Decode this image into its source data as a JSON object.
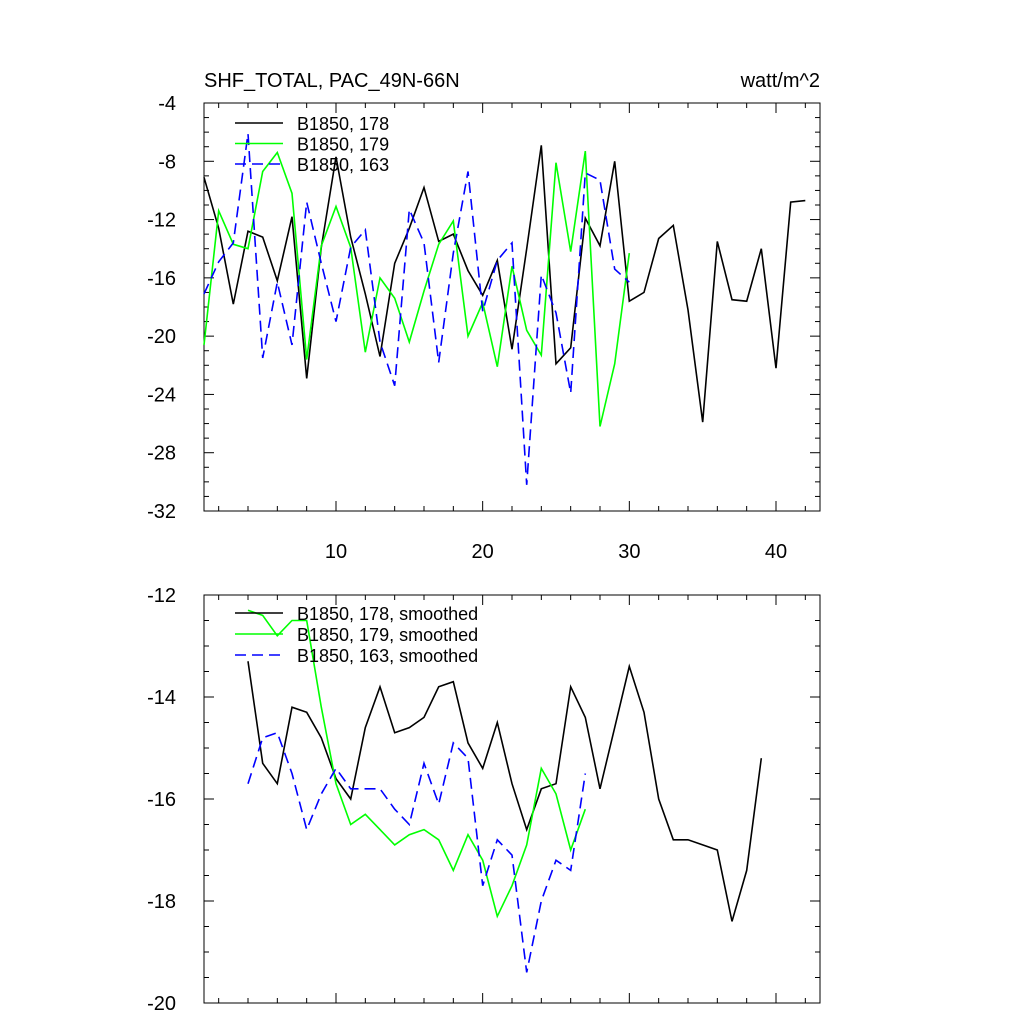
{
  "chart_data": [
    {
      "type": "line",
      "title_left": "SHF_TOTAL, PAC_49N-66N",
      "title_right": "watt/m^2",
      "xlim": [
        1,
        43
      ],
      "ylim": [
        -32,
        -4
      ],
      "xticks": [
        10,
        20,
        30,
        40
      ],
      "xtick_labels": [
        "10",
        "20",
        "30",
        "40"
      ],
      "yticks": [
        -4,
        -8,
        -12,
        -16,
        -20,
        -24,
        -28,
        -32
      ],
      "ytick_labels": [
        "-4",
        "-8",
        "-12",
        "-16",
        "-20",
        "-24",
        "-28",
        "-32"
      ],
      "series": [
        {
          "name": "B1850, 178",
          "color": "#000000",
          "dash": "solid",
          "x": [
            1,
            2,
            3,
            4,
            5,
            6,
            7,
            8,
            9,
            10,
            11,
            12,
            13,
            14,
            15,
            16,
            17,
            18,
            19,
            20,
            21,
            22,
            23,
            24,
            25,
            26,
            27,
            28,
            29,
            30,
            31,
            32,
            33,
            34,
            35,
            36,
            37,
            38,
            39,
            40,
            41,
            42
          ],
          "y": [
            -9.1,
            -12.6,
            -17.8,
            -12.8,
            -13.2,
            -16.2,
            -11.8,
            -22.9,
            -13.9,
            -7.7,
            -13.2,
            -17.1,
            -21.4,
            -15.0,
            -12.6,
            -9.8,
            -13.5,
            -13.0,
            -15.5,
            -17.2,
            -14.8,
            -20.9,
            -14.0,
            -6.9,
            -21.9,
            -20.8,
            -11.9,
            -13.8,
            -8.0,
            -17.6,
            -17.0,
            -13.3,
            -12.4,
            -18.2,
            -25.9,
            -13.5,
            -17.5,
            -17.6,
            -14.0,
            -22.2,
            -10.8,
            -10.7
          ]
        },
        {
          "name": "B1850, 179",
          "color": "#00ff00",
          "dash": "solid",
          "x": [
            1,
            2,
            3,
            4,
            5,
            6,
            7,
            8,
            9,
            10,
            11,
            12,
            13,
            14,
            15,
            16,
            17,
            18,
            19,
            20,
            21,
            22,
            23,
            24,
            25,
            26,
            27,
            28,
            29,
            30
          ],
          "y": [
            -20.6,
            -11.4,
            -13.7,
            -14.0,
            -8.7,
            -7.4,
            -10.2,
            -21.6,
            -13.8,
            -11.1,
            -13.9,
            -21.1,
            -16.0,
            -17.4,
            -20.4,
            -16.9,
            -13.7,
            -12.1,
            -20.0,
            -17.7,
            -22.1,
            -15.2,
            -19.6,
            -21.3,
            -8.1,
            -14.2,
            -7.3,
            -26.2,
            -21.9,
            -14.3
          ]
        },
        {
          "name": "B1850, 163",
          "color": "#0000ff",
          "dash": "dashed",
          "x": [
            1,
            2,
            3,
            4,
            5,
            6,
            7,
            8,
            9,
            10,
            11,
            12,
            13,
            14,
            15,
            16,
            17,
            18,
            19,
            20,
            21,
            22,
            23,
            24,
            25,
            26,
            27,
            28,
            29,
            30
          ],
          "y": [
            -17.1,
            -14.9,
            -13.6,
            -6.1,
            -21.5,
            -16.3,
            -20.6,
            -10.8,
            -15.0,
            -19.0,
            -13.9,
            -12.7,
            -20.4,
            -23.4,
            -11.3,
            -13.6,
            -21.8,
            -14.3,
            -8.7,
            -18.3,
            -14.8,
            -13.6,
            -30.2,
            -15.8,
            -18.4,
            -23.9,
            -8.8,
            -9.3,
            -15.4,
            -16.3
          ]
        }
      ]
    },
    {
      "type": "line",
      "xlim": [
        1,
        43
      ],
      "ylim": [
        -20,
        -12
      ],
      "xticks": [
        10,
        20,
        30,
        40
      ],
      "yticks": [
        -12,
        -14,
        -16,
        -18,
        -20
      ],
      "ytick_labels": [
        "-12",
        "-14",
        "-16",
        "-18",
        "-20"
      ],
      "series": [
        {
          "name": "B1850, 178, smoothed",
          "color": "#000000",
          "dash": "solid",
          "x": [
            4,
            5,
            6,
            7,
            8,
            9,
            10,
            11,
            12,
            13,
            14,
            15,
            16,
            17,
            18,
            19,
            20,
            21,
            22,
            23,
            24,
            25,
            26,
            27,
            28,
            29,
            30,
            31,
            32,
            33,
            34,
            35,
            36,
            37,
            38,
            39
          ],
          "y": [
            -13.3,
            -15.3,
            -15.7,
            -14.2,
            -14.3,
            -14.8,
            -15.6,
            -16.0,
            -14.6,
            -13.8,
            -14.7,
            -14.6,
            -14.4,
            -13.8,
            -13.7,
            -14.9,
            -15.4,
            -14.5,
            -15.7,
            -16.6,
            -15.8,
            -15.7,
            -13.8,
            -14.4,
            -15.8,
            -14.6,
            -13.4,
            -14.3,
            -16.0,
            -16.8,
            -16.8,
            -16.9,
            -17.0,
            -18.4,
            -17.4,
            -15.2
          ]
        },
        {
          "name": "B1850, 179, smoothed",
          "color": "#00ff00",
          "dash": "solid",
          "x": [
            4,
            5,
            6,
            7,
            8,
            9,
            10,
            11,
            12,
            13,
            14,
            15,
            16,
            17,
            18,
            19,
            20,
            21,
            22,
            23,
            24,
            25,
            26,
            27
          ],
          "y": [
            -12.3,
            -12.4,
            -12.8,
            -12.5,
            -12.5,
            -14.2,
            -15.7,
            -16.5,
            -16.3,
            -16.6,
            -16.9,
            -16.7,
            -16.6,
            -16.8,
            -17.4,
            -16.7,
            -17.2,
            -18.3,
            -17.7,
            -16.9,
            -15.4,
            -15.9,
            -17.0,
            -16.2
          ]
        },
        {
          "name": "B1850, 163, smoothed",
          "color": "#0000ff",
          "dash": "dashed",
          "x": [
            4,
            5,
            6,
            7,
            8,
            9,
            10,
            11,
            12,
            13,
            14,
            15,
            16,
            17,
            18,
            19,
            20,
            21,
            22,
            23,
            24,
            25,
            26,
            27
          ],
          "y": [
            -15.7,
            -14.8,
            -14.7,
            -15.5,
            -16.6,
            -15.9,
            -15.4,
            -15.8,
            -15.8,
            -15.8,
            -16.2,
            -16.5,
            -15.3,
            -16.1,
            -14.9,
            -15.2,
            -17.7,
            -16.8,
            -17.1,
            -19.4,
            -18.0,
            -17.2,
            -17.4,
            -15.5
          ]
        }
      ]
    }
  ]
}
